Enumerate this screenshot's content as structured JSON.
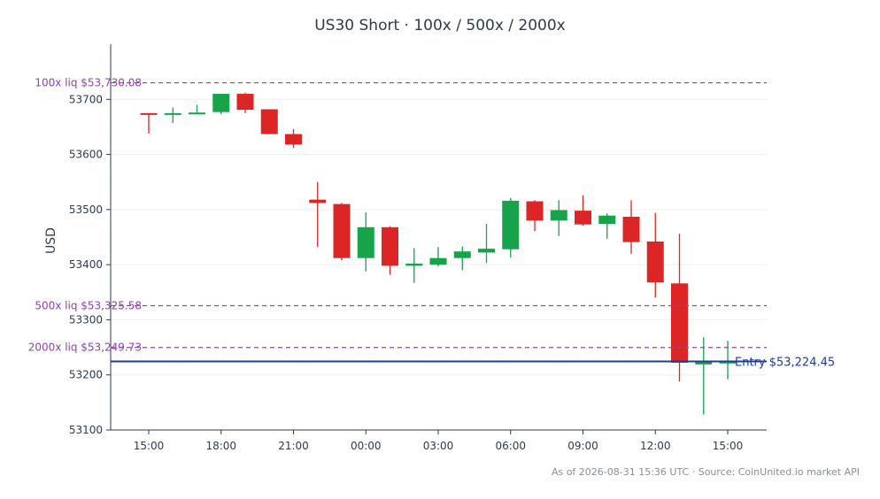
{
  "chart_data": {
    "type": "candlestick",
    "title": "US30 Short · 100x / 500x / 2000x",
    "ylabel": "USD",
    "xlabel": "",
    "ylim": [
      53100,
      53800
    ],
    "grid": true,
    "x_tick_labels": [
      "15:00",
      "18:00",
      "21:00",
      "00:00",
      "03:00",
      "06:00",
      "09:00",
      "12:00",
      "15:00"
    ],
    "y_tick_labels": [
      "53100",
      "53200",
      "53300",
      "53400",
      "53500",
      "53600",
      "53700"
    ],
    "y_ticks": [
      53100,
      53200,
      53300,
      53400,
      53500,
      53600,
      53700
    ],
    "candles": [
      {
        "t": "15:00",
        "o": 53675,
        "h": 53675,
        "l": 53638,
        "c": 53673
      },
      {
        "t": "16:00",
        "o": 53673,
        "h": 53685,
        "l": 53657,
        "c": 53675
      },
      {
        "t": "17:00",
        "o": 53673,
        "h": 53690,
        "l": 53673,
        "c": 53676
      },
      {
        "t": "18:00",
        "o": 53677,
        "h": 53710,
        "l": 53673,
        "c": 53710
      },
      {
        "t": "19:00",
        "o": 53710,
        "h": 53712,
        "l": 53675,
        "c": 53681
      },
      {
        "t": "20:00",
        "o": 53682,
        "h": 53682,
        "l": 53637,
        "c": 53637
      },
      {
        "t": "21:00",
        "o": 53637,
        "h": 53646,
        "l": 53612,
        "c": 53618
      },
      {
        "t": "22:00",
        "o": 53518,
        "h": 53550,
        "l": 53432,
        "c": 53512
      },
      {
        "t": "23:00",
        "o": 53510,
        "h": 53512,
        "l": 53408,
        "c": 53412
      },
      {
        "t": "00:00",
        "o": 53412,
        "h": 53495,
        "l": 53388,
        "c": 53468
      },
      {
        "t": "01:00",
        "o": 53468,
        "h": 53470,
        "l": 53382,
        "c": 53398
      },
      {
        "t": "02:00",
        "o": 53398,
        "h": 53430,
        "l": 53367,
        "c": 53402
      },
      {
        "t": "03:00",
        "o": 53400,
        "h": 53432,
        "l": 53397,
        "c": 53412
      },
      {
        "t": "04:00",
        "o": 53412,
        "h": 53433,
        "l": 53390,
        "c": 53424
      },
      {
        "t": "05:00",
        "o": 53422,
        "h": 53474,
        "l": 53403,
        "c": 53429
      },
      {
        "t": "06:00",
        "o": 53428,
        "h": 53521,
        "l": 53413,
        "c": 53516
      },
      {
        "t": "07:00",
        "o": 53515,
        "h": 53517,
        "l": 53461,
        "c": 53480
      },
      {
        "t": "08:00",
        "o": 53480,
        "h": 53517,
        "l": 53452,
        "c": 53499
      },
      {
        "t": "09:00",
        "o": 53498,
        "h": 53526,
        "l": 53471,
        "c": 53473
      },
      {
        "t": "10:00",
        "o": 53474,
        "h": 53493,
        "l": 53447,
        "c": 53489
      },
      {
        "t": "11:00",
        "o": 53487,
        "h": 53517,
        "l": 53420,
        "c": 53441
      },
      {
        "t": "12:00",
        "o": 53442,
        "h": 53494,
        "l": 53340,
        "c": 53368
      },
      {
        "t": "13:00",
        "o": 53366,
        "h": 53456,
        "l": 53188,
        "c": 53222
      },
      {
        "t": "14:00",
        "o": 53219,
        "h": 53268,
        "l": 53128,
        "c": 53225
      },
      {
        "t": "15:00",
        "o": 53223,
        "h": 53262,
        "l": 53192,
        "c": 53224
      }
    ],
    "horizontal_lines": [
      {
        "label": "100x liq $53,730.08",
        "value": 53730.08,
        "style": "dashed",
        "color": "#8e44ad"
      },
      {
        "label": "500x liq $53,325.58",
        "value": 53325.58,
        "style": "dashed",
        "color": "#8e44ad"
      },
      {
        "label": "2000x liq $53,249.73",
        "value": 53249.73,
        "style": "dashed",
        "color": "#8e44ad"
      },
      {
        "label": "Entry $53,224.45",
        "value": 53224.45,
        "style": "solid",
        "color": "#1f3c99"
      }
    ],
    "colors": {
      "up": "#16a34a",
      "down": "#dc2626",
      "axis": "#2e3b4e",
      "grid": "#eeeeee"
    }
  },
  "footer": "As of 2026-08-31 15:36 UTC · Source: CoinUnited.io market API"
}
